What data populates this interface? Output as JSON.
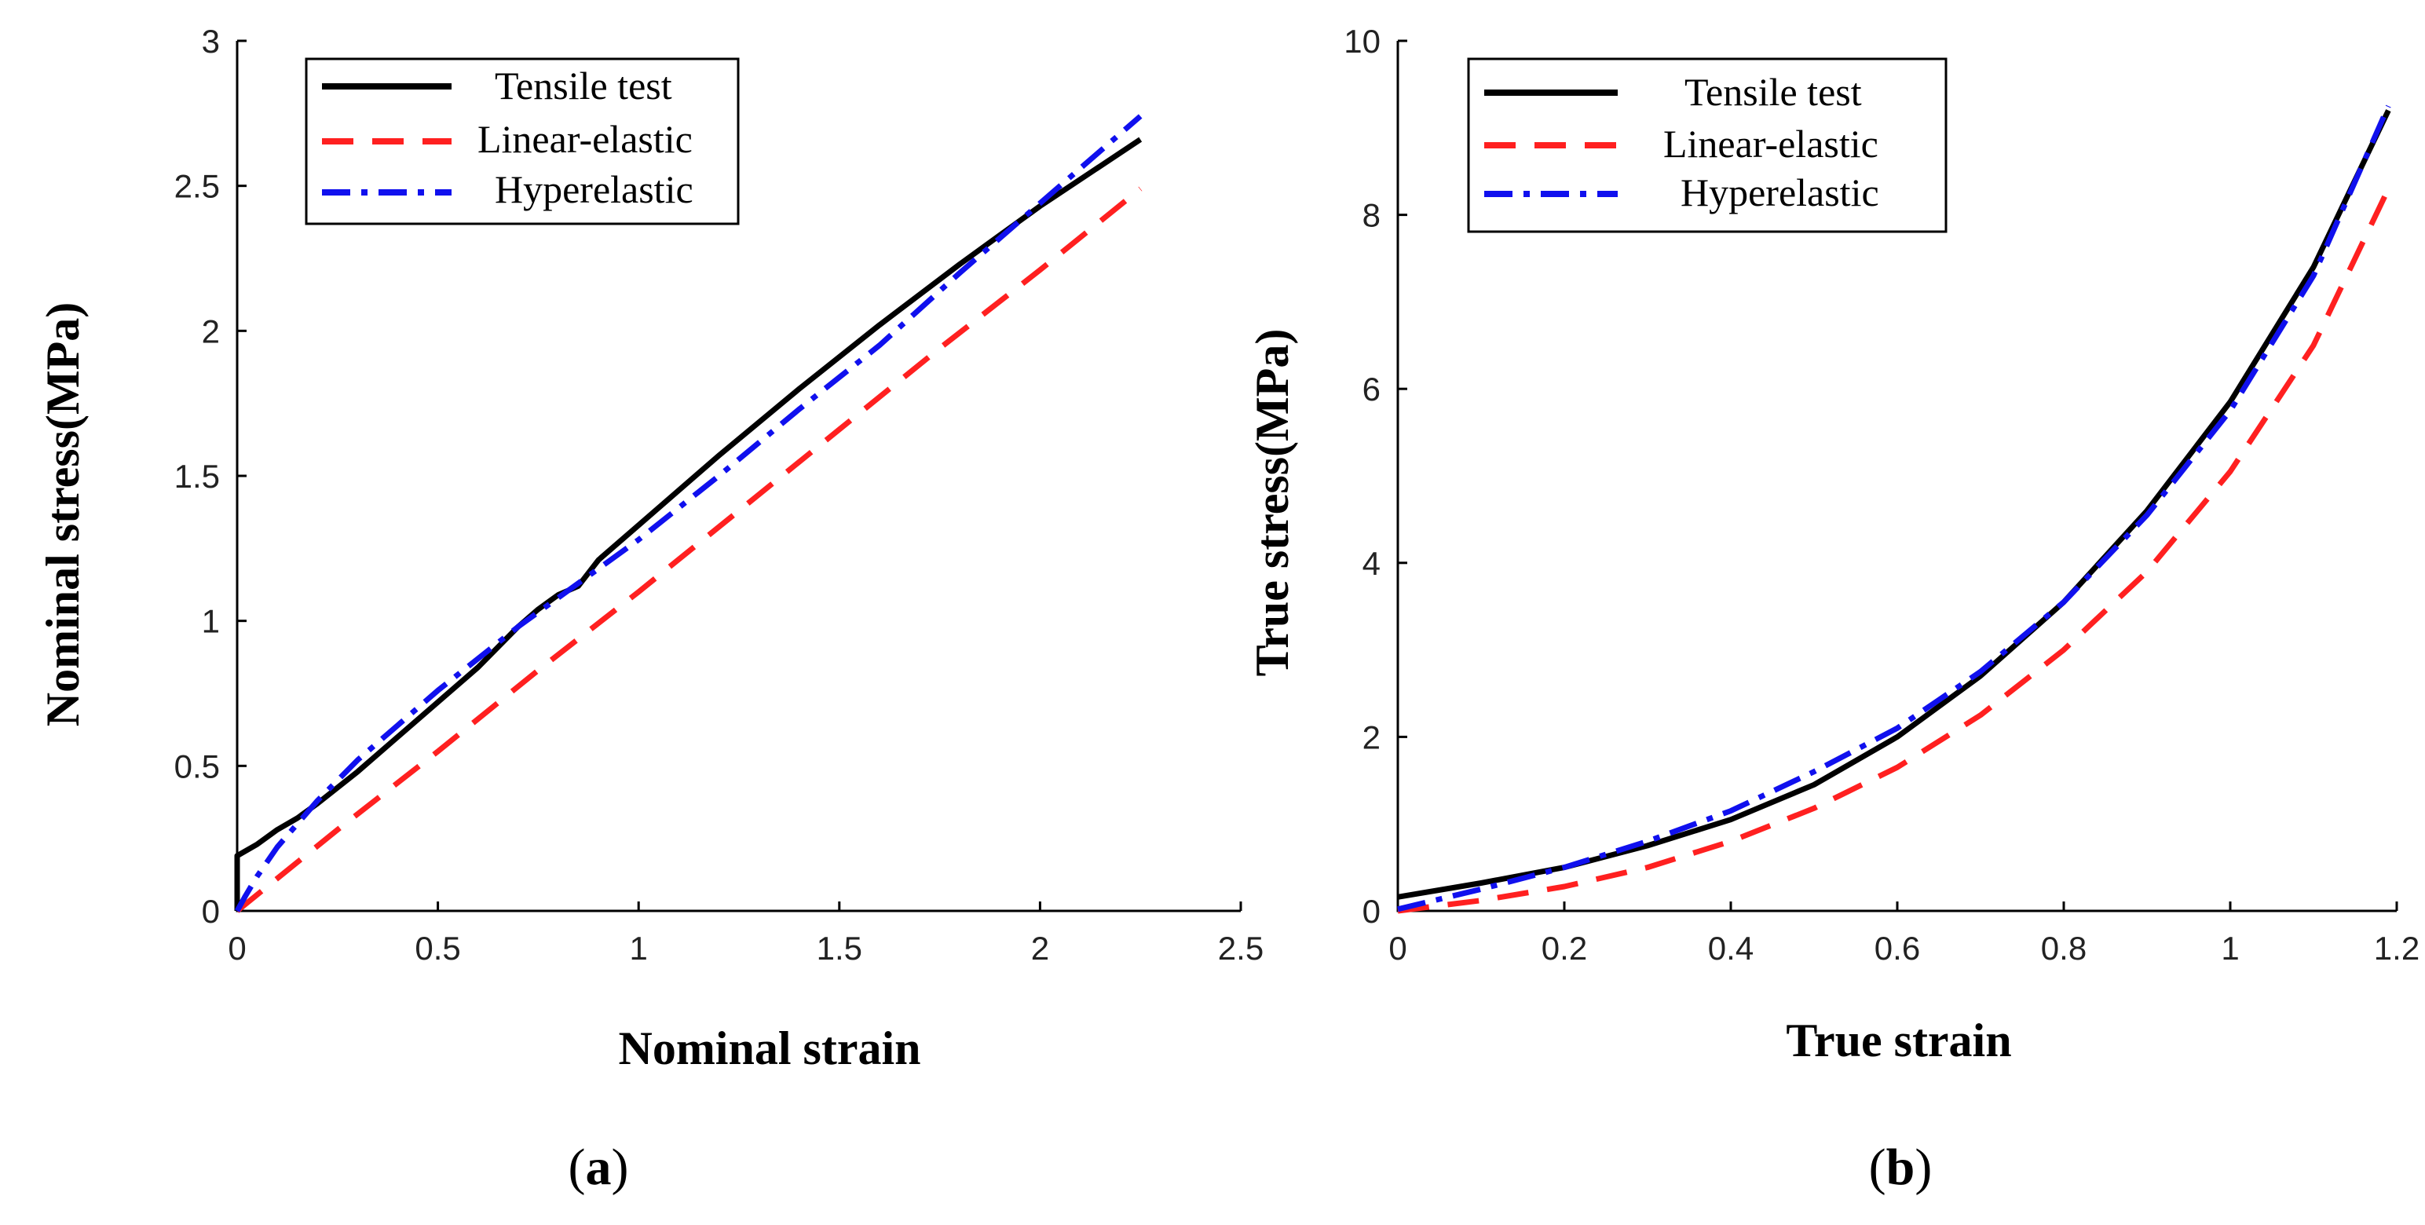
{
  "chart_data": [
    {
      "type": "line",
      "panel_label": "(a)",
      "panel_letter": "a",
      "xlabel": "Nominal strain",
      "ylabel": "Nominal stress(MPa)",
      "xlim": [
        0,
        2.5
      ],
      "ylim": [
        0,
        3
      ],
      "xticks": [
        0,
        0.5,
        1,
        1.5,
        2,
        2.5
      ],
      "xtick_labels": [
        "0",
        "0.5",
        "1",
        "1.5",
        "2",
        "2.5"
      ],
      "yticks": [
        0,
        0.5,
        1,
        1.5,
        2,
        2.5,
        3
      ],
      "ytick_labels": [
        "0",
        "0.5",
        "1",
        "1.5",
        "2",
        "2.5",
        "3"
      ],
      "legend_position": "top-left",
      "series": [
        {
          "name": "Tensile test",
          "color": "#000000",
          "style": "solid",
          "x": [
            0,
            0,
            0.05,
            0.1,
            0.15,
            0.2,
            0.3,
            0.4,
            0.5,
            0.6,
            0.7,
            0.75,
            0.8,
            0.85,
            0.9,
            1.0,
            1.2,
            1.4,
            1.6,
            1.8,
            2.0,
            2.25
          ],
          "y": [
            0,
            0.19,
            0.23,
            0.28,
            0.32,
            0.37,
            0.48,
            0.6,
            0.72,
            0.84,
            0.98,
            1.04,
            1.09,
            1.12,
            1.21,
            1.33,
            1.57,
            1.8,
            2.02,
            2.23,
            2.43,
            2.66
          ]
        },
        {
          "name": "Linear-elastic",
          "color": "#ff2020",
          "style": "dashed",
          "x": [
            0,
            0.25,
            0.5,
            0.75,
            1.0,
            1.25,
            1.5,
            1.75,
            2.0,
            2.25
          ],
          "y": [
            0,
            0.28,
            0.55,
            0.83,
            1.1,
            1.38,
            1.66,
            1.94,
            2.21,
            2.49
          ]
        },
        {
          "name": "Hyperelastic",
          "color": "#1010ee",
          "style": "dashdot",
          "x": [
            0,
            0.02,
            0.05,
            0.1,
            0.2,
            0.3,
            0.4,
            0.5,
            0.6,
            0.7,
            0.8,
            0.9,
            1.0,
            1.2,
            1.4,
            1.6,
            1.8,
            2.0,
            2.25
          ],
          "y": [
            0,
            0.05,
            0.12,
            0.22,
            0.38,
            0.52,
            0.64,
            0.76,
            0.87,
            0.98,
            1.08,
            1.18,
            1.28,
            1.5,
            1.73,
            1.95,
            2.2,
            2.44,
            2.74
          ]
        }
      ]
    },
    {
      "type": "line",
      "panel_label": "(b)",
      "panel_letter": "b",
      "xlabel": "True strain",
      "ylabel": "True stress(MPa)",
      "xlim": [
        0,
        1.2
      ],
      "ylim": [
        0,
        10
      ],
      "xticks": [
        0,
        0.2,
        0.4,
        0.6,
        0.8,
        1.0,
        1.2
      ],
      "xtick_labels": [
        "0",
        "0.2",
        "0.4",
        "0.6",
        "0.8",
        "1",
        "1.2"
      ],
      "yticks": [
        0,
        2,
        4,
        6,
        8,
        10
      ],
      "ytick_labels": [
        "0",
        "2",
        "4",
        "6",
        "8",
        "10"
      ],
      "legend_position": "top-left",
      "series": [
        {
          "name": "Tensile test",
          "color": "#000000",
          "style": "solid",
          "x": [
            0,
            0.1,
            0.2,
            0.3,
            0.4,
            0.5,
            0.6,
            0.7,
            0.8,
            0.9,
            1.0,
            1.1,
            1.19
          ],
          "y": [
            0.16,
            0.32,
            0.5,
            0.75,
            1.05,
            1.45,
            2.0,
            2.7,
            3.55,
            4.6,
            5.85,
            7.4,
            9.2
          ]
        },
        {
          "name": "Linear-elastic",
          "color": "#ff2020",
          "style": "dashed",
          "x": [
            0,
            0.1,
            0.2,
            0.3,
            0.4,
            0.5,
            0.6,
            0.7,
            0.8,
            0.9,
            1.0,
            1.1,
            1.19
          ],
          "y": [
            0,
            0.12,
            0.28,
            0.5,
            0.8,
            1.18,
            1.65,
            2.25,
            3.0,
            3.9,
            5.05,
            6.5,
            8.3
          ]
        },
        {
          "name": "Hyperelastic",
          "color": "#1010ee",
          "style": "dashdot",
          "x": [
            0,
            0.1,
            0.2,
            0.3,
            0.4,
            0.5,
            0.6,
            0.7,
            0.8,
            0.9,
            1.0,
            1.1,
            1.19
          ],
          "y": [
            0.02,
            0.25,
            0.5,
            0.8,
            1.15,
            1.6,
            2.1,
            2.75,
            3.55,
            4.55,
            5.75,
            7.3,
            9.25
          ]
        }
      ]
    }
  ]
}
